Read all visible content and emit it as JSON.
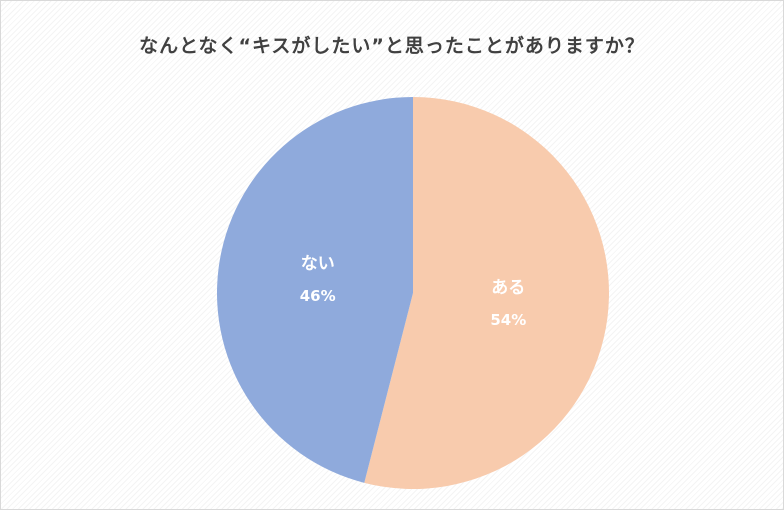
{
  "chart_data": {
    "type": "pie",
    "title": "なんとなく“キスがしたい”と思ったことがありますか？",
    "slices": [
      {
        "label": "ある",
        "value": 54,
        "display": "54%",
        "color": "#f8cbad"
      },
      {
        "label": "ない",
        "value": 46,
        "display": "46%",
        "color": "#8faadc"
      }
    ],
    "start": "12 o'clock",
    "direction": "clockwise",
    "legend": "none",
    "data_labels": "inside"
  }
}
